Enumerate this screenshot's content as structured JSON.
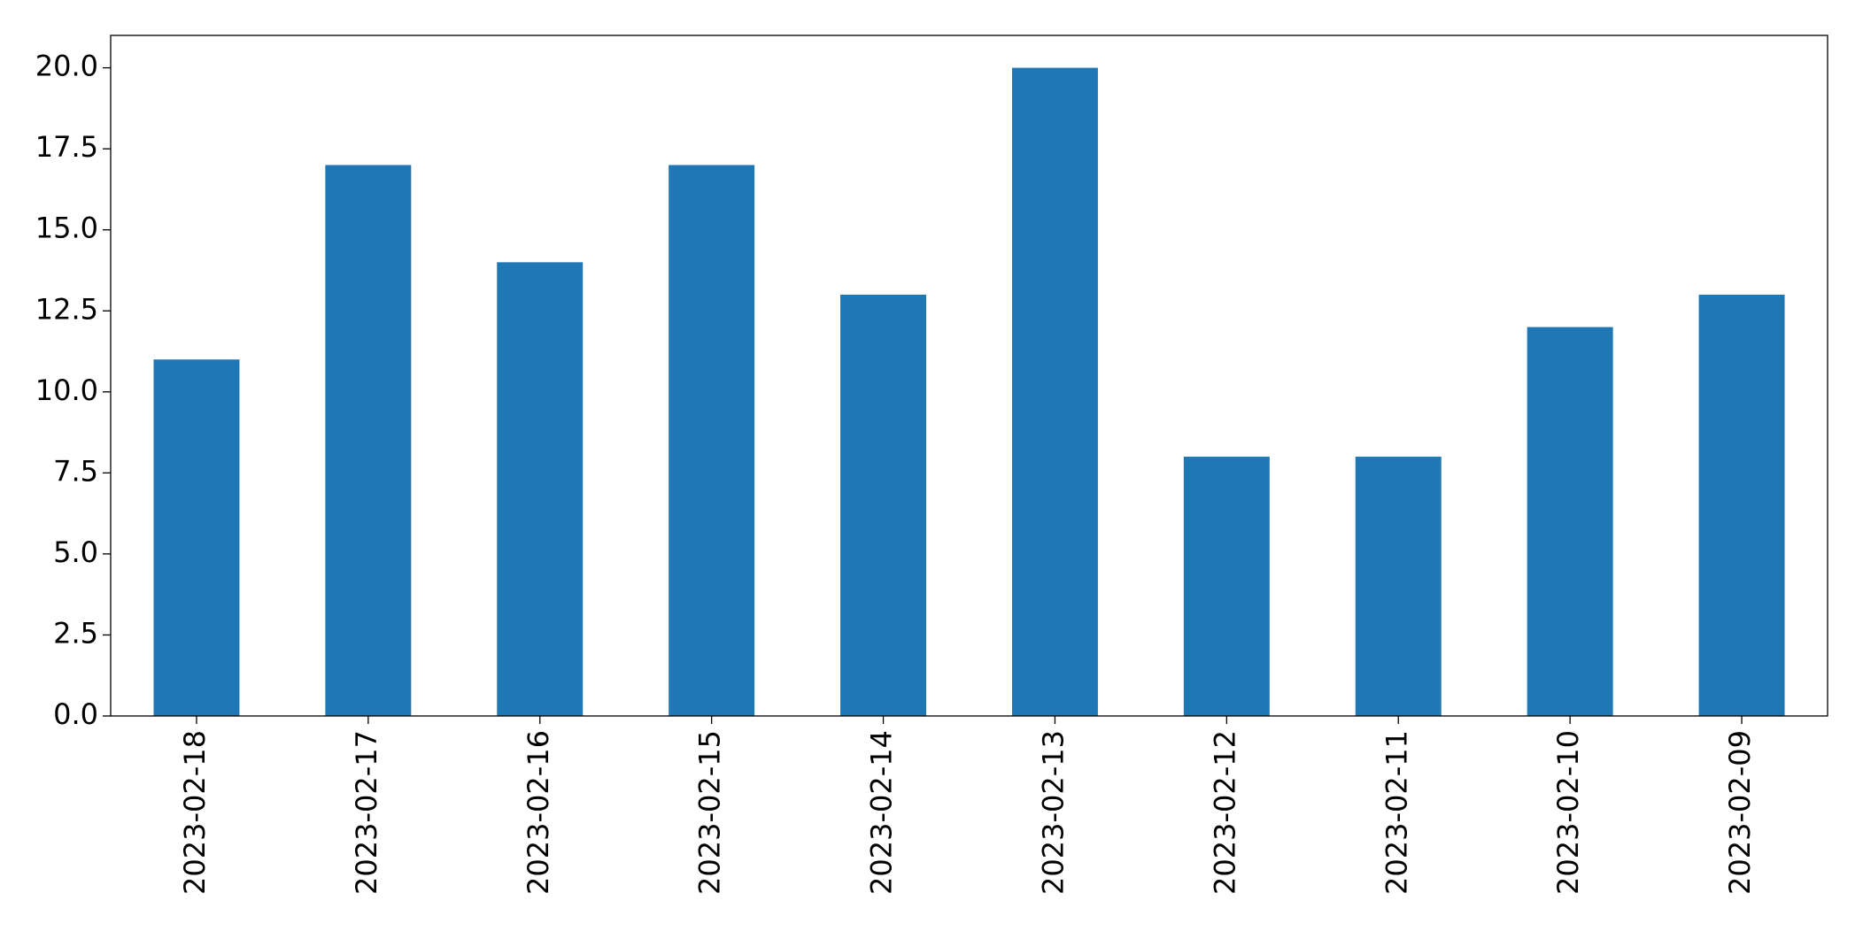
{
  "chart_data": {
    "type": "bar",
    "categories": [
      "2023-02-18",
      "2023-02-17",
      "2023-02-16",
      "2023-02-15",
      "2023-02-14",
      "2023-02-13",
      "2023-02-12",
      "2023-02-11",
      "2023-02-10",
      "2023-02-09"
    ],
    "values": [
      11,
      17,
      14,
      17,
      13,
      20,
      8,
      8,
      12,
      13
    ],
    "color": "#1f77b4",
    "ylim": [
      0,
      21
    ],
    "yticks": [
      {
        "value": 0,
        "label": "0.0"
      },
      {
        "value": 2.5,
        "label": "2.5"
      },
      {
        "value": 5,
        "label": "5.0"
      },
      {
        "value": 7.5,
        "label": "7.5"
      },
      {
        "value": 10,
        "label": "10.0"
      },
      {
        "value": 12.5,
        "label": "12.5"
      },
      {
        "value": 15,
        "label": "15.0"
      },
      {
        "value": 17.5,
        "label": "17.5"
      },
      {
        "value": 20,
        "label": "20.0"
      }
    ],
    "grid": false
  }
}
